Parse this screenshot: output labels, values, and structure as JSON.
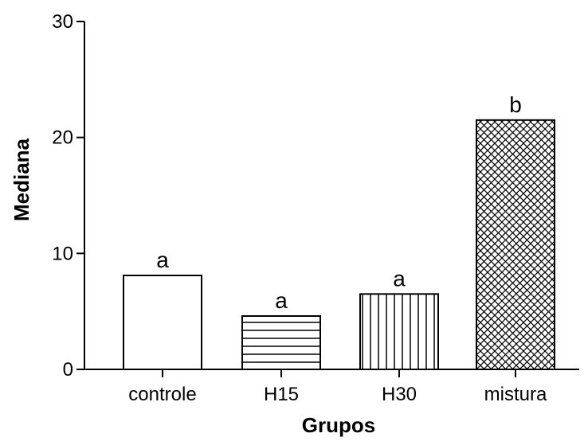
{
  "chart_data": {
    "type": "bar",
    "title": "",
    "xlabel": "Grupos",
    "ylabel": "Mediana",
    "ylim": [
      0,
      30
    ],
    "yticks": [
      0,
      10,
      20,
      30
    ],
    "categories": [
      "controle",
      "H15",
      "H30",
      "mistura"
    ],
    "values": [
      8.1,
      4.6,
      6.5,
      21.5
    ],
    "significance_labels": [
      "a",
      "a",
      "a",
      "b"
    ],
    "fill_patterns": [
      "none",
      "horizontal-lines",
      "vertical-lines",
      "crosshatch"
    ],
    "grid": false,
    "legend": "none",
    "colors": {
      "bar_stroke": "#000000",
      "bar_fill": "#ffffff",
      "axis": "#000000"
    }
  }
}
